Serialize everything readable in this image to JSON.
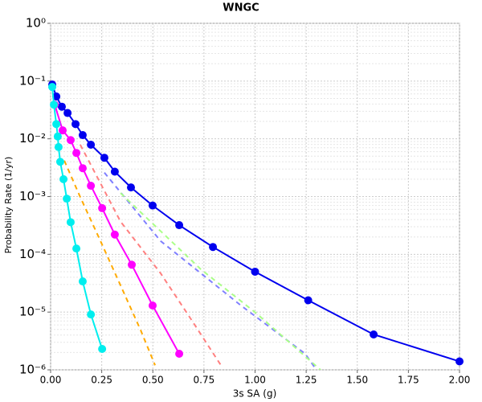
{
  "chart_data": {
    "type": "line",
    "title": "WNGC",
    "x_label": "3s SA (g)",
    "y_label": "Probability Rate (1/yr)",
    "log_y": true,
    "grid": true,
    "minor_grid": true,
    "xlim": [
      0,
      2
    ],
    "ylim": [
      1e-06,
      1
    ],
    "xticks": [
      {
        "value": 0,
        "label": "0.00"
      },
      {
        "value": 0.25,
        "label": "0.25"
      },
      {
        "value": 0.5,
        "label": "0.50"
      },
      {
        "value": 0.75,
        "label": "0.75"
      },
      {
        "value": 1,
        "label": "1.00"
      },
      {
        "value": 1.25,
        "label": "1.25"
      },
      {
        "value": 1.5,
        "label": "1.50"
      },
      {
        "value": 1.75,
        "label": "1.75"
      },
      {
        "value": 2,
        "label": "2.00"
      }
    ],
    "yticks": [
      {
        "value": 1e-06,
        "label": "10⁻⁶"
      },
      {
        "value": 1e-05,
        "label": "10⁻⁵"
      },
      {
        "value": 0.0001,
        "label": "10⁻⁴"
      },
      {
        "value": 0.001,
        "label": "10⁻³"
      },
      {
        "value": 0.01,
        "label": "10⁻²"
      },
      {
        "value": 0.1,
        "label": "10⁻¹"
      },
      {
        "value": 1,
        "label": "10⁰"
      }
    ],
    "series": [
      {
        "color": "#ffaa00",
        "dashed": true,
        "markers": false,
        "x": [
          0.067,
          0.145,
          0.244,
          0.342,
          0.44,
          0.511
        ],
        "values": [
          0.0042,
          0.00098,
          0.00017,
          2.9e-05,
          4.9e-06,
          1.2e-06
        ]
      },
      {
        "color": "#ff8080",
        "dashed": true,
        "markers": false,
        "x": [
          0.145,
          0.342,
          0.538,
          0.695,
          0.833
        ],
        "values": [
          0.0079,
          0.00037,
          4.7e-05,
          6.8e-06,
          1.2e-06
        ]
      },
      {
        "color": "#8080ff",
        "dashed": true,
        "markers": false,
        "x": [
          0.263,
          0.538,
          0.931,
          1.245,
          1.3
        ],
        "values": [
          0.0026,
          0.00017,
          1.3e-05,
          1.9e-06,
          1e-06
        ]
      },
      {
        "color": "#aaff88",
        "dashed": true,
        "markers": false,
        "x": [
          0.342,
          0.735,
          1.01,
          1.32
        ],
        "values": [
          0.00115,
          5.5e-05,
          9.3e-06,
          1e-06
        ]
      },
      {
        "color": "#0000ee",
        "dashed": false,
        "markers": true,
        "x": [
          0.008,
          0.028,
          0.055,
          0.083,
          0.122,
          0.157,
          0.197,
          0.263,
          0.314,
          0.393,
          0.499,
          0.629,
          0.794,
          1.0,
          1.26,
          1.58,
          2.0
        ],
        "values": [
          0.087,
          0.054,
          0.036,
          0.028,
          0.018,
          0.0116,
          0.0079,
          0.0047,
          0.0027,
          0.00144,
          0.0007,
          0.00032,
          0.000134,
          5e-05,
          1.6e-05,
          4.1e-06,
          1.4e-06
        ]
      },
      {
        "color": "#ff00ff",
        "dashed": false,
        "markers": true,
        "x": [
          0.02,
          0.059,
          0.098,
          0.126,
          0.157,
          0.197,
          0.252,
          0.314,
          0.397,
          0.499,
          0.629
        ],
        "values": [
          0.039,
          0.014,
          0.0095,
          0.0057,
          0.0031,
          0.00154,
          0.00063,
          0.00022,
          6.6e-05,
          1.3e-05,
          1.9e-06
        ]
      },
      {
        "color": "#00eeee",
        "dashed": false,
        "markers": true,
        "x": [
          0.008,
          0.016,
          0.028,
          0.035,
          0.039,
          0.047,
          0.063,
          0.079,
          0.098,
          0.126,
          0.157,
          0.197,
          0.252
        ],
        "values": [
          0.079,
          0.039,
          0.018,
          0.011,
          0.0072,
          0.004,
          0.002,
          0.00092,
          0.00036,
          0.000126,
          3.4e-05,
          9.1e-06,
          2.3e-06
        ]
      }
    ]
  }
}
